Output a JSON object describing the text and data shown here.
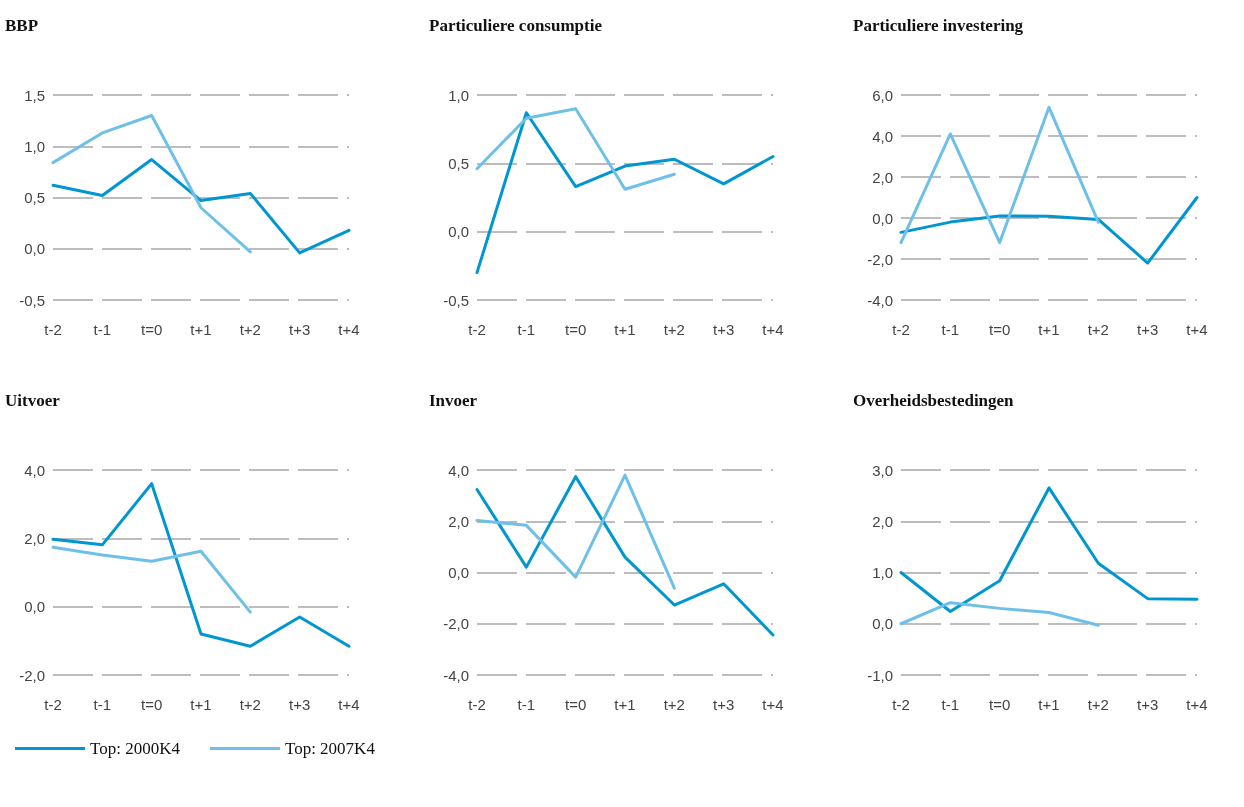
{
  "chart_data": [
    {
      "type": "line",
      "title": "BBP",
      "categories": [
        "t-2",
        "t-1",
        "t=0",
        "t+1",
        "t+2",
        "t+3",
        "t+4"
      ],
      "ylim": [
        -0.5,
        1.5
      ],
      "yticks": [
        {
          "value": -0.5,
          "label": "-0,5"
        },
        {
          "value": 0,
          "label": "0,0"
        },
        {
          "value": 0.5,
          "label": "0,5"
        },
        {
          "value": 1,
          "label": "1,0"
        },
        {
          "value": 1.5,
          "label": "1,5"
        }
      ],
      "grid": "y",
      "marker": "none",
      "line_style": "solid",
      "series": [
        {
          "color": "#0096d2",
          "values": [
            0.62,
            0.52,
            0.87,
            0.47,
            0.54,
            -0.04,
            0.18
          ]
        },
        {
          "color": "#6fc0e8",
          "values": [
            0.84,
            1.13,
            1.3,
            0.4,
            -0.03,
            null,
            null
          ]
        }
      ]
    },
    {
      "type": "line",
      "title": "Particuliere consumptie",
      "categories": [
        "t-2",
        "t-1",
        "t=0",
        "t+1",
        "t+2",
        "t+3",
        "t+4"
      ],
      "ylim": [
        -0.5,
        1.0
      ],
      "yticks": [
        {
          "value": -0.5,
          "label": "-0,5"
        },
        {
          "value": 0,
          "label": "0,0"
        },
        {
          "value": 0.5,
          "label": "0,5"
        },
        {
          "value": 1,
          "label": "1,0"
        }
      ],
      "grid": "y",
      "marker": "none",
      "line_style": "solid",
      "series": [
        {
          "color": "#0096d2",
          "values": [
            -0.3,
            0.87,
            0.33,
            0.48,
            0.53,
            0.35,
            0.55
          ]
        },
        {
          "color": "#6fc0e8",
          "values": [
            0.46,
            0.83,
            0.9,
            0.31,
            0.42,
            null,
            null
          ]
        }
      ]
    },
    {
      "type": "line",
      "title": "Particuliere investering",
      "categories": [
        "t-2",
        "t-1",
        "t=0",
        "t+1",
        "t+2",
        "t+3",
        "t+4"
      ],
      "ylim": [
        -4,
        6
      ],
      "yticks": [
        {
          "value": -4,
          "label": "-4,0"
        },
        {
          "value": -2,
          "label": "-2,0"
        },
        {
          "value": 0,
          "label": "0,0"
        },
        {
          "value": 2,
          "label": "2,0"
        },
        {
          "value": 4,
          "label": "4,0"
        },
        {
          "value": 6,
          "label": "6,0"
        }
      ],
      "grid": "y",
      "marker": "none",
      "line_style": "solid",
      "series": [
        {
          "color": "#0096d2",
          "values": [
            -0.7,
            -0.2,
            0.1,
            0.08,
            -0.07,
            -2.2,
            1.0
          ]
        },
        {
          "color": "#6fc0e8",
          "values": [
            -1.2,
            4.1,
            -1.2,
            5.4,
            -0.2,
            null,
            null
          ]
        }
      ]
    },
    {
      "type": "line",
      "title": "Uitvoer",
      "categories": [
        "t-2",
        "t-1",
        "t=0",
        "t+1",
        "t+2",
        "t+3",
        "t+4"
      ],
      "ylim": [
        -2,
        4
      ],
      "yticks": [
        {
          "value": -2,
          "label": "-2,0"
        },
        {
          "value": 0,
          "label": "0,0"
        },
        {
          "value": 2,
          "label": "2,0"
        },
        {
          "value": 4,
          "label": "4,0"
        }
      ],
      "grid": "y",
      "marker": "none",
      "line_style": "solid",
      "legend": "bottom left",
      "series": [
        {
          "name": "Top: 2000K4",
          "color": "#0096d2",
          "values": [
            1.97,
            1.81,
            3.6,
            -0.8,
            -1.16,
            -0.3,
            -1.16
          ]
        },
        {
          "name": "Top: 2007K4",
          "color": "#6fc0e8",
          "values": [
            1.74,
            1.51,
            1.33,
            1.62,
            -0.16,
            null,
            null
          ]
        }
      ]
    },
    {
      "type": "line",
      "title": "Invoer",
      "categories": [
        "t-2",
        "t-1",
        "t=0",
        "t+1",
        "t+2",
        "t+3",
        "t+4"
      ],
      "ylim": [
        -4,
        4
      ],
      "yticks": [
        {
          "value": -4,
          "label": "-4,0"
        },
        {
          "value": -2,
          "label": "-2,0"
        },
        {
          "value": 0,
          "label": "0,0"
        },
        {
          "value": 2,
          "label": "2,0"
        },
        {
          "value": 4,
          "label": "4,0"
        }
      ],
      "grid": "y",
      "marker": "none",
      "line_style": "solid",
      "series": [
        {
          "color": "#0096d2",
          "values": [
            3.24,
            0.21,
            3.74,
            0.6,
            -1.27,
            -0.44,
            -2.44
          ]
        },
        {
          "color": "#6fc0e8",
          "values": [
            2.03,
            1.84,
            -0.18,
            3.8,
            -0.61,
            null,
            null
          ]
        }
      ]
    },
    {
      "type": "line",
      "title": "Overheidsbestedingen",
      "categories": [
        "t-2",
        "t-1",
        "t=0",
        "t+1",
        "t+2",
        "t+3",
        "t+4"
      ],
      "ylim": [
        -1,
        3
      ],
      "yticks": [
        {
          "value": -1,
          "label": "-1,0"
        },
        {
          "value": 0,
          "label": "0,0"
        },
        {
          "value": 1,
          "label": "1,0"
        },
        {
          "value": 2,
          "label": "2,0"
        },
        {
          "value": 3,
          "label": "3,0"
        }
      ],
      "grid": "y",
      "marker": "none",
      "line_style": "solid",
      "series": [
        {
          "color": "#0096d2",
          "values": [
            1.0,
            0.24,
            0.84,
            2.65,
            1.18,
            0.49,
            0.48
          ]
        },
        {
          "color": "#6fc0e8",
          "values": [
            0.0,
            0.41,
            0.3,
            0.22,
            -0.03,
            null,
            null
          ]
        }
      ]
    }
  ]
}
